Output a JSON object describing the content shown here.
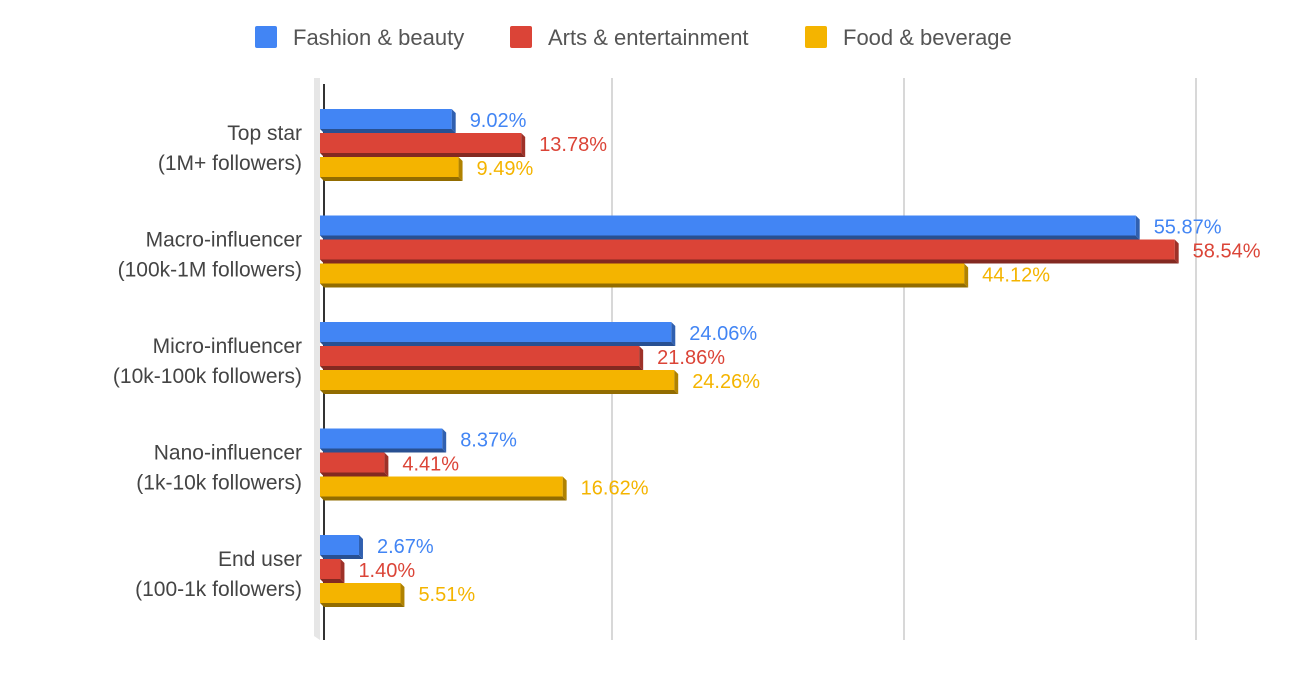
{
  "chart_data": {
    "type": "bar",
    "orientation": "horizontal",
    "style": "3d",
    "categories": [
      [
        "Top star",
        "(1M+ followers)"
      ],
      [
        "Macro-influencer",
        "(100k-1M followers)"
      ],
      [
        "Micro-influencer",
        "(10k-100k followers)"
      ],
      [
        "Nano-influencer",
        "(1k-10k followers)"
      ],
      [
        "End user",
        "(100-1k followers)"
      ]
    ],
    "series": [
      {
        "name": "Fashion & beauty",
        "color": "#4285f4",
        "values": [
          9.02,
          55.87,
          24.06,
          8.37,
          2.67
        ],
        "labels": [
          "9.02%",
          "55.87%",
          "24.06%",
          "8.37%",
          "2.67%"
        ]
      },
      {
        "name": "Arts & entertainment",
        "color": "#db4437",
        "values": [
          13.78,
          58.54,
          21.86,
          4.41,
          1.4
        ],
        "labels": [
          "13.78%",
          "58.54%",
          "21.86%",
          "4.41%",
          "1.40%"
        ]
      },
      {
        "name": "Food & beverage",
        "color": "#f4b400",
        "values": [
          9.49,
          44.12,
          24.26,
          16.62,
          5.51
        ],
        "labels": [
          "9.49%",
          "44.12%",
          "24.26%",
          "16.62%",
          "5.51%"
        ]
      }
    ],
    "xlim": [
      0,
      60
    ],
    "grid": true,
    "legend_position": "top"
  }
}
